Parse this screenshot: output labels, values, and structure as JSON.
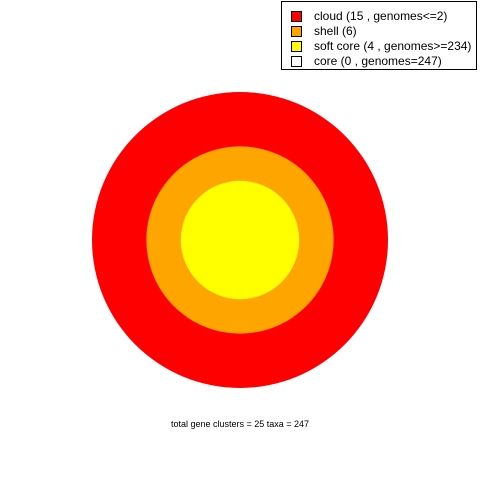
{
  "chart_data": {
    "type": "pie",
    "title": "",
    "rings": [
      {
        "name": "cloud",
        "clusters": 15,
        "color": "#FF0000"
      },
      {
        "name": "shell",
        "clusters": 6,
        "color": "#FFA500"
      },
      {
        "name": "soft core",
        "clusters": 4,
        "color": "#FFFF00"
      },
      {
        "name": "core",
        "clusters": 0,
        "color": "#FFFFFF"
      }
    ],
    "legend": [
      "cloud  (15 , genomes<=2)",
      "shell  (6)",
      "soft core  (4 , genomes>=234)",
      "core  (0 , genomes=247)"
    ],
    "legend_position": "top-right",
    "caption": "total gene clusters = 25   taxa = 247"
  }
}
